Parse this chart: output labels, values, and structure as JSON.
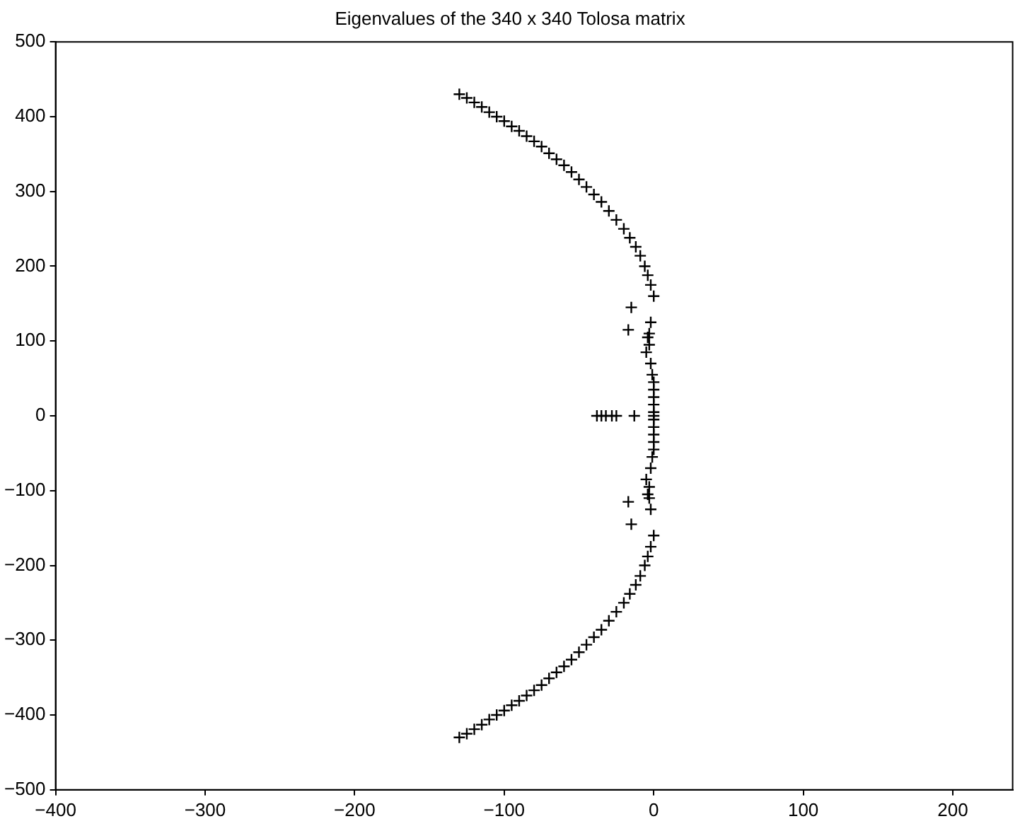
{
  "chart_data": {
    "type": "scatter",
    "title": "Eigenvalues of the 340 x 340 Tolosa matrix",
    "xlim": [
      -400,
      240
    ],
    "xticks": [
      -400,
      -300,
      -200,
      -100,
      0,
      100,
      200
    ],
    "ylim": [
      -500,
      500
    ],
    "yticks": [
      -500,
      -400,
      -300,
      -200,
      -100,
      0,
      100,
      200,
      300,
      400,
      500
    ],
    "marker": "cross",
    "legend": false,
    "series": [
      {
        "color": "#000000",
        "x": [
          -130,
          -125,
          -120,
          -115,
          -110,
          -105,
          -100,
          -95,
          -90,
          -85,
          -80,
          -75,
          -70,
          -65,
          -60,
          -55,
          -50,
          -45,
          -40,
          -35,
          -30,
          -25,
          -20,
          -16,
          -12,
          -9,
          -6,
          -4,
          -2,
          0,
          -130,
          -125,
          -120,
          -115,
          -110,
          -105,
          -100,
          -95,
          -90,
          -85,
          -80,
          -75,
          -70,
          -65,
          -60,
          -55,
          -50,
          -45,
          -40,
          -35,
          -30,
          -25,
          -20,
          -16,
          -12,
          -9,
          -6,
          -4,
          -2,
          0,
          -15,
          -17,
          -2,
          -3,
          -4,
          -3,
          -5,
          -2,
          -1,
          0,
          0,
          0,
          0,
          0,
          -15,
          -17,
          -2,
          -3,
          -4,
          -3,
          -5,
          -2,
          -1,
          0,
          0,
          0,
          0,
          0,
          -38,
          -35,
          -32,
          -28,
          -25,
          -13,
          0
        ],
        "values": [
          430,
          425,
          419,
          413,
          406,
          400,
          394,
          387,
          381,
          374,
          367,
          360,
          351,
          343,
          335,
          326,
          316,
          306,
          296,
          286,
          274,
          262,
          250,
          238,
          226,
          214,
          200,
          188,
          175,
          160,
          -430,
          -425,
          -419,
          -413,
          -406,
          -400,
          -394,
          -387,
          -381,
          -374,
          -367,
          -360,
          -351,
          -343,
          -335,
          -326,
          -316,
          -306,
          -296,
          -286,
          -274,
          -262,
          -250,
          -238,
          -226,
          -214,
          -200,
          -188,
          -175,
          -160,
          145,
          115,
          125,
          110,
          105,
          95,
          85,
          70,
          55,
          45,
          35,
          25,
          15,
          5,
          -145,
          -115,
          -125,
          -110,
          -105,
          -95,
          -85,
          -70,
          -55,
          -45,
          -35,
          -25,
          -15,
          -5,
          0,
          0,
          0,
          0,
          0,
          0,
          0
        ]
      }
    ]
  }
}
